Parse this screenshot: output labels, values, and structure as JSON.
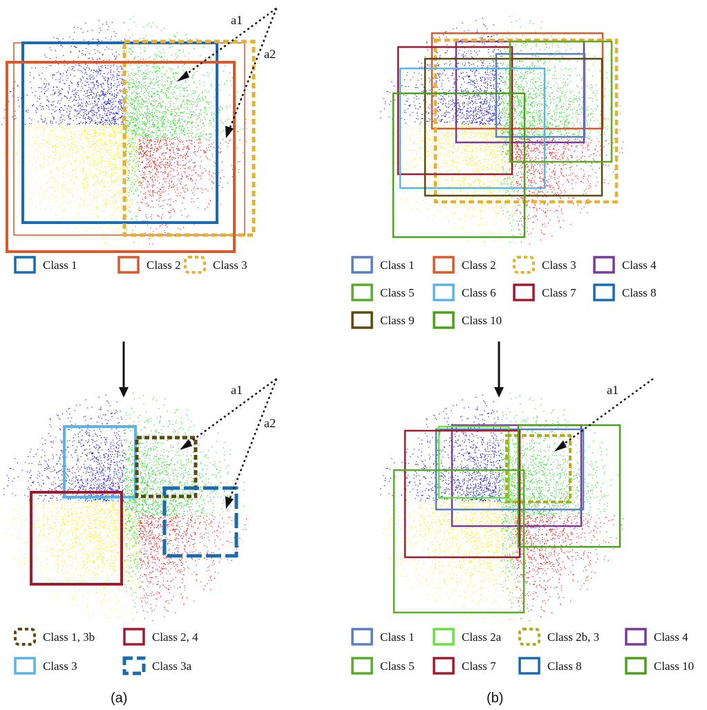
{
  "panels": {
    "a": {
      "caption": "(a)"
    },
    "b": {
      "caption": "(b)"
    }
  },
  "annotations": {
    "a1": "a1",
    "a2": "a2"
  },
  "cluster_colors": {
    "blue": "#1a1ae6",
    "green": "#22dd22",
    "red": "#ee2020",
    "yellow": "#f5f03a"
  },
  "class_colors": {
    "c1_blue": "#5a7fbf",
    "c2_orange": "#d9592a",
    "c3_gold": "#e8b030",
    "c4_purple": "#7a3a9a",
    "c5_green": "#5aaa2a",
    "c6_lightblue": "#5ab4e6",
    "c7_crimson": "#a01a30",
    "c8_blue": "#1a6ab0",
    "c9_olive": "#5a4a10",
    "c10_green": "#4aa01a",
    "c2a_lime": "#6ae040",
    "c2b3_olive": "#b8a820",
    "a_top_c1": "#1a6ab0",
    "a_top_c2": "#d9592a",
    "a_bot_c13b": "#5a4a10",
    "a_bot_c24": "#a01a30",
    "a_bot_c3": "#5ab4e6",
    "a_bot_c3a": "#1a6ab0"
  },
  "legends": {
    "a_top": [
      "Class 1",
      "Class 2",
      "Class 3"
    ],
    "b_top": [
      "Class 1",
      "Class 2",
      "Class 3",
      "Class 4",
      "Class 5",
      "Class 6",
      "Class 7",
      "Class 8",
      "Class 9",
      "Class 10"
    ],
    "a_bottom": [
      "Class 1, 3b",
      "Class 2, 4",
      "Class 3",
      "Class 3a"
    ],
    "b_bottom": [
      "Class 1",
      "Class 2a",
      "Class 2b, 3",
      "Class 4",
      "Class 5",
      "Class 7",
      "Class 8",
      "Class 10"
    ]
  }
}
